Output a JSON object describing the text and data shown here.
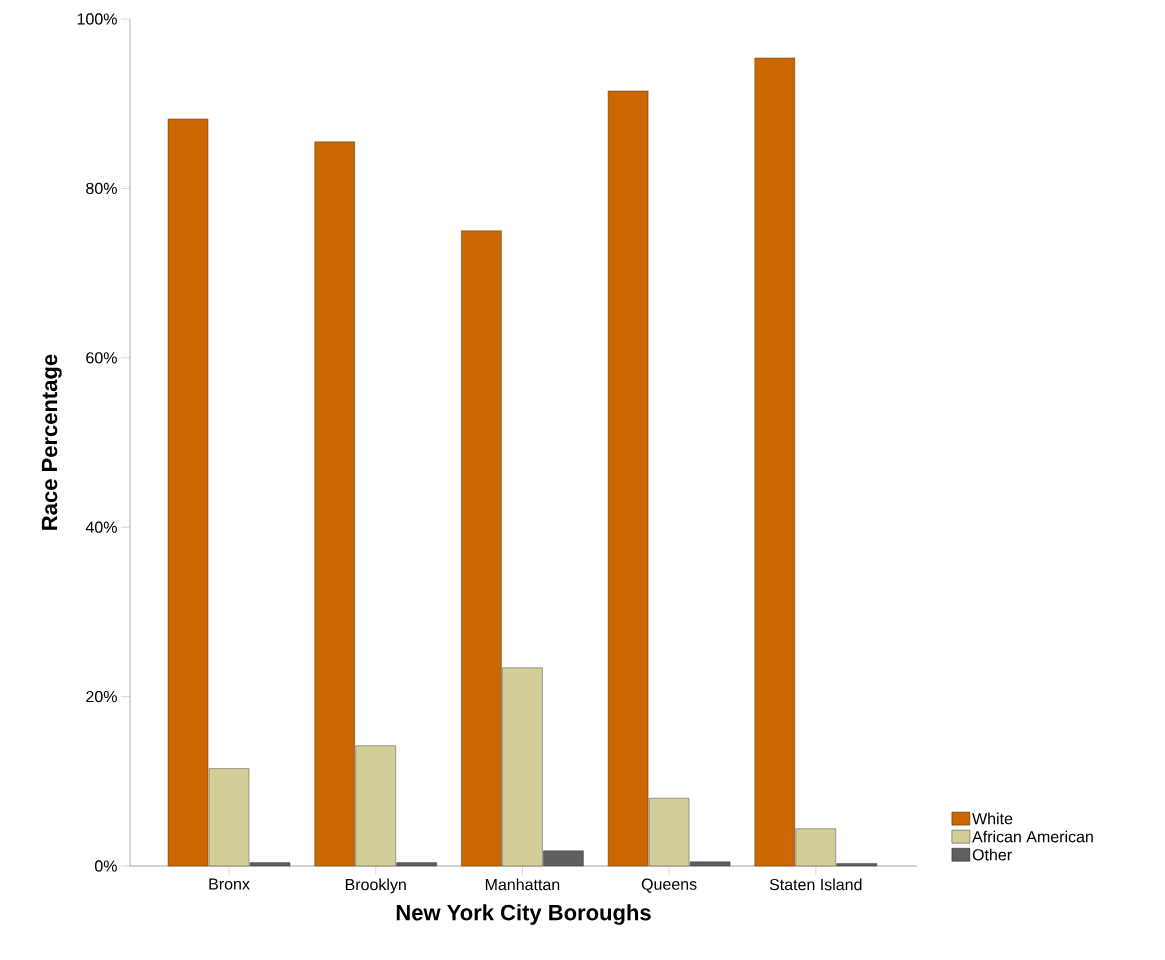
{
  "chart_data": {
    "type": "bar",
    "xlabel": "New York City Boroughs",
    "ylabel": "Race Percentage",
    "categories": [
      "Bronx",
      "Brooklyn",
      "Manhattan",
      "Queens",
      "Staten Island"
    ],
    "series": [
      {
        "name": "White",
        "color": "#cc6600",
        "values": [
          88.2,
          85.5,
          75.0,
          91.5,
          95.4
        ]
      },
      {
        "name": "African American",
        "color": "#d3ce97",
        "values": [
          11.5,
          14.2,
          23.4,
          8.0,
          4.4
        ]
      },
      {
        "name": "Other",
        "color": "#5f5f5f",
        "values": [
          0.4,
          0.4,
          1.8,
          0.5,
          0.3
        ]
      }
    ],
    "ylim": [
      0,
      100
    ],
    "yticks": [
      {
        "value": 0,
        "label": "0%"
      },
      {
        "value": 20,
        "label": "20%"
      },
      {
        "value": 40,
        "label": "40%"
      },
      {
        "value": 60,
        "label": "60%"
      },
      {
        "value": 80,
        "label": "80%"
      },
      {
        "value": 100,
        "label": "100%"
      }
    ],
    "legend": "bottom right"
  }
}
